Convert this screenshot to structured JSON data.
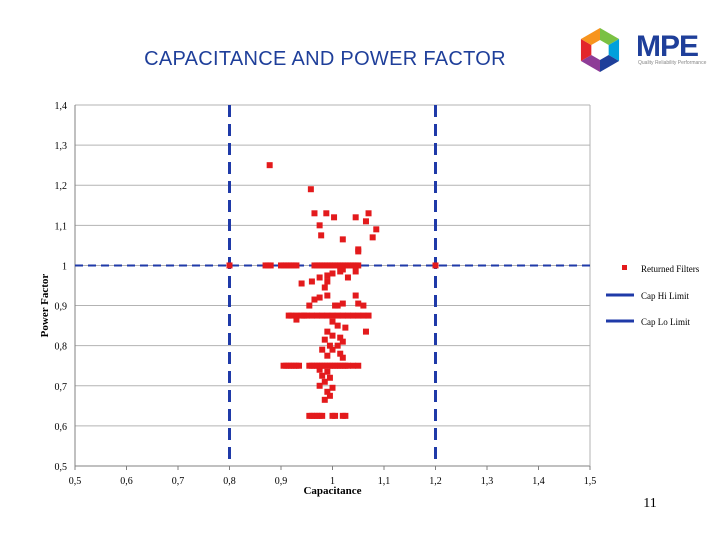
{
  "title": "CAPACITANCE AND POWER FACTOR",
  "logo": {
    "text": "MPE",
    "tagline": "Quality Reliability Performance",
    "colors": [
      "#7ac143",
      "#00a0dc",
      "#1f3f9a",
      "#8e3c97",
      "#e3262b",
      "#f7941d"
    ]
  },
  "page_number": "11",
  "colors": {
    "points": "#e31a1c",
    "limits": "#1f3aa8",
    "grid": "#b3b3b3"
  },
  "chart_data": {
    "type": "scatter",
    "title": "CAPACITANCE AND POWER FACTOR",
    "xlabel": "Capacitance",
    "ylabel": "Power Factor",
    "xlim": [
      0.5,
      1.5
    ],
    "ylim": [
      0.5,
      1.4
    ],
    "x_ticks": [
      "0,5",
      "0,6",
      "0,7",
      "0,8",
      "0,9",
      "1",
      "1,1",
      "1,2",
      "1,3",
      "1,4",
      "1,5"
    ],
    "y_ticks": [
      "0,5",
      "0,6",
      "0,7",
      "0,8",
      "0,9",
      "1",
      "1,1",
      "1,2",
      "1,3",
      "1,4"
    ],
    "grid": "horizontal",
    "legend_position": "right",
    "series": [
      {
        "name": "Returned Filters",
        "kind": "points",
        "points": [
          [
            0.878,
            1.25
          ],
          [
            0.958,
            1.19
          ],
          [
            0.965,
            1.13
          ],
          [
            0.988,
            1.13
          ],
          [
            1.003,
            1.12
          ],
          [
            1.045,
            1.12
          ],
          [
            1.07,
            1.13
          ],
          [
            1.065,
            1.11
          ],
          [
            0.975,
            1.1
          ],
          [
            1.085,
            1.09
          ],
          [
            1.078,
            1.07
          ],
          [
            0.978,
            1.075
          ],
          [
            1.02,
            1.065
          ],
          [
            1.05,
            1.04
          ],
          [
            1.05,
            1.035
          ],
          [
            0.8,
            1.0
          ],
          [
            0.87,
            1.0
          ],
          [
            0.875,
            1.0
          ],
          [
            0.88,
            1.0
          ],
          [
            0.9,
            1.0
          ],
          [
            0.905,
            1.0
          ],
          [
            0.91,
            1.0
          ],
          [
            0.915,
            1.0
          ],
          [
            0.92,
            1.0
          ],
          [
            0.925,
            1.0
          ],
          [
            0.93,
            1.0
          ],
          [
            0.965,
            1.0
          ],
          [
            0.97,
            1.0
          ],
          [
            0.975,
            1.0
          ],
          [
            0.98,
            1.0
          ],
          [
            0.985,
            1.0
          ],
          [
            0.99,
            1.0
          ],
          [
            0.995,
            1.0
          ],
          [
            1.0,
            1.0
          ],
          [
            1.005,
            1.0
          ],
          [
            1.01,
            1.0
          ],
          [
            1.015,
            1.0
          ],
          [
            1.02,
            1.0
          ],
          [
            1.025,
            1.0
          ],
          [
            1.03,
            1.0
          ],
          [
            1.035,
            1.0
          ],
          [
            1.04,
            1.0
          ],
          [
            1.045,
            1.0
          ],
          [
            1.05,
            1.0
          ],
          [
            1.2,
            1.0
          ],
          [
            1.02,
            0.99
          ],
          [
            1.015,
            0.985
          ],
          [
            1.0,
            0.98
          ],
          [
            0.99,
            0.975
          ],
          [
            0.975,
            0.97
          ],
          [
            0.96,
            0.96
          ],
          [
            0.99,
            0.96
          ],
          [
            1.03,
            0.97
          ],
          [
            1.045,
            0.985
          ],
          [
            0.94,
            0.955
          ],
          [
            0.985,
            0.945
          ],
          [
            1.045,
            0.925
          ],
          [
            0.965,
            0.915
          ],
          [
            0.975,
            0.92
          ],
          [
            0.99,
            0.925
          ],
          [
            1.005,
            0.9
          ],
          [
            1.01,
            0.9
          ],
          [
            1.02,
            0.905
          ],
          [
            1.05,
            0.905
          ],
          [
            1.06,
            0.9
          ],
          [
            0.955,
            0.9
          ],
          [
            0.915,
            0.875
          ],
          [
            0.92,
            0.875
          ],
          [
            0.93,
            0.875
          ],
          [
            0.94,
            0.875
          ],
          [
            0.945,
            0.875
          ],
          [
            0.95,
            0.875
          ],
          [
            0.96,
            0.875
          ],
          [
            0.97,
            0.875
          ],
          [
            0.98,
            0.875
          ],
          [
            0.99,
            0.875
          ],
          [
            1.0,
            0.875
          ],
          [
            1.01,
            0.875
          ],
          [
            1.02,
            0.875
          ],
          [
            1.03,
            0.875
          ],
          [
            1.04,
            0.875
          ],
          [
            1.05,
            0.875
          ],
          [
            1.06,
            0.875
          ],
          [
            1.07,
            0.875
          ],
          [
            0.93,
            0.865
          ],
          [
            1.0,
            0.86
          ],
          [
            1.01,
            0.85
          ],
          [
            1.025,
            0.845
          ],
          [
            0.99,
            0.835
          ],
          [
            1.0,
            0.825
          ],
          [
            1.015,
            0.82
          ],
          [
            1.065,
            0.835
          ],
          [
            0.985,
            0.815
          ],
          [
            1.02,
            0.81
          ],
          [
            0.995,
            0.8
          ],
          [
            1.01,
            0.8
          ],
          [
            0.98,
            0.79
          ],
          [
            1.0,
            0.79
          ],
          [
            1.015,
            0.78
          ],
          [
            0.99,
            0.775
          ],
          [
            1.02,
            0.77
          ],
          [
            0.905,
            0.75
          ],
          [
            0.91,
            0.75
          ],
          [
            0.915,
            0.75
          ],
          [
            0.92,
            0.75
          ],
          [
            0.925,
            0.75
          ],
          [
            0.93,
            0.75
          ],
          [
            0.935,
            0.75
          ],
          [
            0.955,
            0.75
          ],
          [
            0.96,
            0.75
          ],
          [
            0.965,
            0.75
          ],
          [
            0.97,
            0.75
          ],
          [
            0.975,
            0.75
          ],
          [
            0.98,
            0.75
          ],
          [
            0.985,
            0.75
          ],
          [
            0.99,
            0.75
          ],
          [
            0.995,
            0.75
          ],
          [
            1.0,
            0.75
          ],
          [
            1.005,
            0.75
          ],
          [
            1.01,
            0.75
          ],
          [
            1.015,
            0.75
          ],
          [
            1.02,
            0.75
          ],
          [
            1.025,
            0.75
          ],
          [
            1.03,
            0.75
          ],
          [
            1.04,
            0.75
          ],
          [
            1.05,
            0.75
          ],
          [
            0.975,
            0.74
          ],
          [
            0.99,
            0.735
          ],
          [
            0.98,
            0.725
          ],
          [
            0.995,
            0.72
          ],
          [
            0.985,
            0.71
          ],
          [
            0.975,
            0.7
          ],
          [
            1.0,
            0.695
          ],
          [
            0.99,
            0.685
          ],
          [
            0.995,
            0.675
          ],
          [
            0.985,
            0.665
          ],
          [
            0.955,
            0.625
          ],
          [
            0.96,
            0.625
          ],
          [
            0.965,
            0.625
          ],
          [
            0.97,
            0.625
          ],
          [
            0.975,
            0.625
          ],
          [
            0.98,
            0.625
          ],
          [
            1.0,
            0.625
          ],
          [
            1.005,
            0.625
          ],
          [
            1.02,
            0.625
          ],
          [
            1.025,
            0.625
          ]
        ]
      },
      {
        "name": "Cap Hi Limit",
        "kind": "vline",
        "x": 1.2
      },
      {
        "name": "Cap Lo Limit",
        "kind": "vline",
        "x": 0.8
      },
      {
        "name": "",
        "kind": "hline",
        "y": 1.0
      }
    ]
  }
}
